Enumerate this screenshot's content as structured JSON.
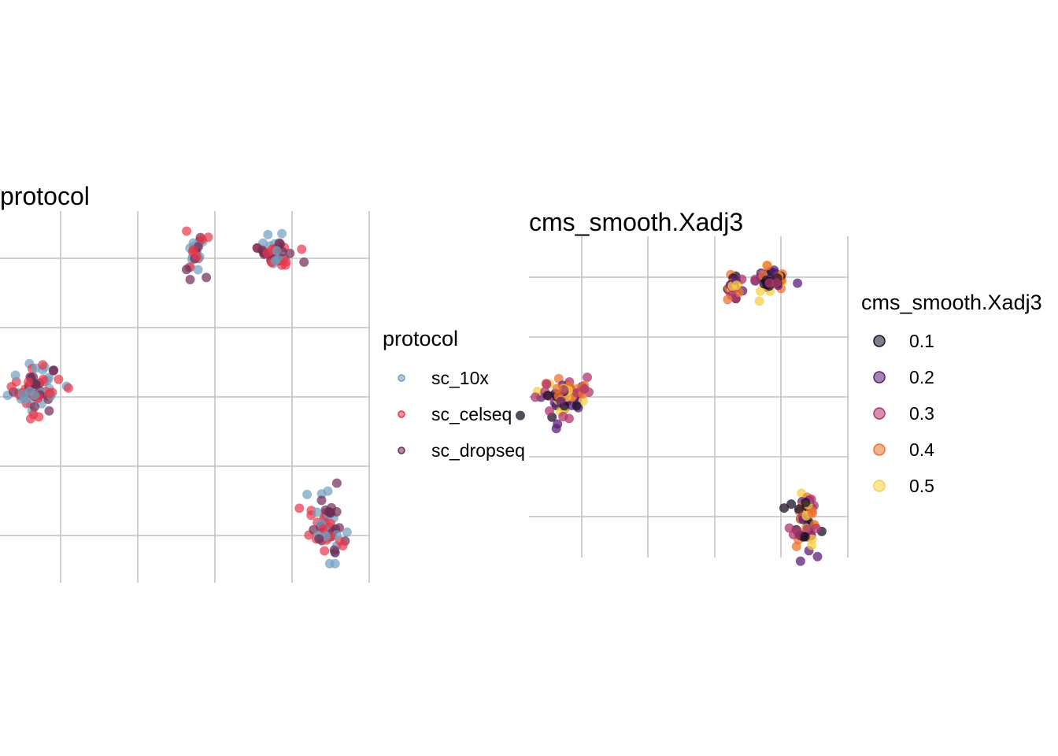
{
  "chart_data": [
    {
      "type": "scatter",
      "title": "protocol",
      "xlabel": "",
      "ylabel": "",
      "xlim": [
        0,
        4
      ],
      "ylim": [
        0,
        4
      ],
      "grid": true,
      "legend": {
        "title": "protocol",
        "position": "right",
        "entries": [
          {
            "label": "sc_10x",
            "color": "#6f9fbf"
          },
          {
            "label": "sc_celseq",
            "color": "#e8364a"
          },
          {
            "label": "sc_dropseq",
            "color": "#6e2b54"
          }
        ]
      },
      "clusters": [
        {
          "center": [
            0.37,
            2.1
          ],
          "spread": [
            0.28,
            0.28
          ],
          "count": 70
        },
        {
          "center": [
            2.11,
            3.6
          ],
          "spread": [
            0.12,
            0.22
          ],
          "count": 28
        },
        {
          "center": [
            2.97,
            3.65
          ],
          "spread": [
            0.22,
            0.22
          ],
          "count": 40
        },
        {
          "center": [
            3.55,
            0.55
          ],
          "spread": [
            0.18,
            0.35
          ],
          "count": 60
        }
      ]
    },
    {
      "type": "scatter",
      "title": "cms_smooth.Xadj3",
      "xlabel": "",
      "ylabel": "",
      "xlim": [
        0,
        4
      ],
      "ylim": [
        0,
        4
      ],
      "grid": true,
      "legend": {
        "title": "cms_smooth.Xadj3",
        "position": "right",
        "entries": [
          {
            "label": "0.1",
            "color": "#1b1027"
          },
          {
            "label": "0.2",
            "color": "#5c1f77"
          },
          {
            "label": "0.3",
            "color": "#b0366d"
          },
          {
            "label": "0.4",
            "color": "#ec7330"
          },
          {
            "label": "0.5",
            "color": "#f6cf45"
          }
        ]
      },
      "clusters": [
        {
          "center": [
            0.4,
            2.0
          ],
          "spread": [
            0.3,
            0.3
          ],
          "count": 70
        },
        {
          "center": [
            2.55,
            3.35
          ],
          "spread": [
            0.14,
            0.18
          ],
          "count": 24
        },
        {
          "center": [
            3.0,
            3.45
          ],
          "spread": [
            0.22,
            0.18
          ],
          "count": 40
        },
        {
          "center": [
            3.45,
            0.45
          ],
          "spread": [
            0.18,
            0.33
          ],
          "count": 60
        }
      ]
    }
  ]
}
